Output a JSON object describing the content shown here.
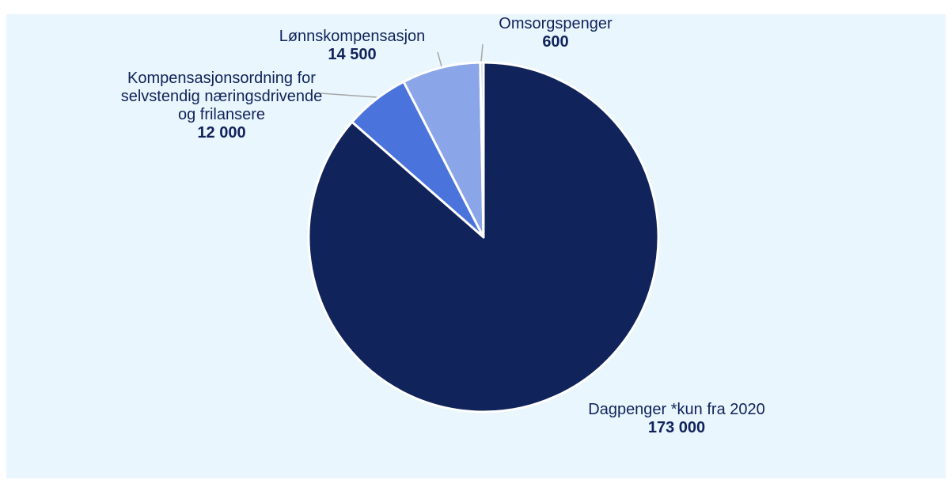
{
  "chart_data": {
    "type": "pie",
    "categories": [
      "Dagpenger *kun fra 2020",
      "Kompensasjonsordning for selvstendig næringsdrivende og frilansere",
      "Lønnskompensasjon",
      "Omsorgspenger"
    ],
    "values": [
      173000,
      12000,
      14500,
      600
    ],
    "value_labels": [
      "173 000",
      "12 000",
      "14 500",
      "600"
    ],
    "colors": [
      "#10235a",
      "#4a73dc",
      "#8aa5e8",
      "#b3c8f2"
    ],
    "start_angle": 0,
    "direction": "clockwise"
  }
}
